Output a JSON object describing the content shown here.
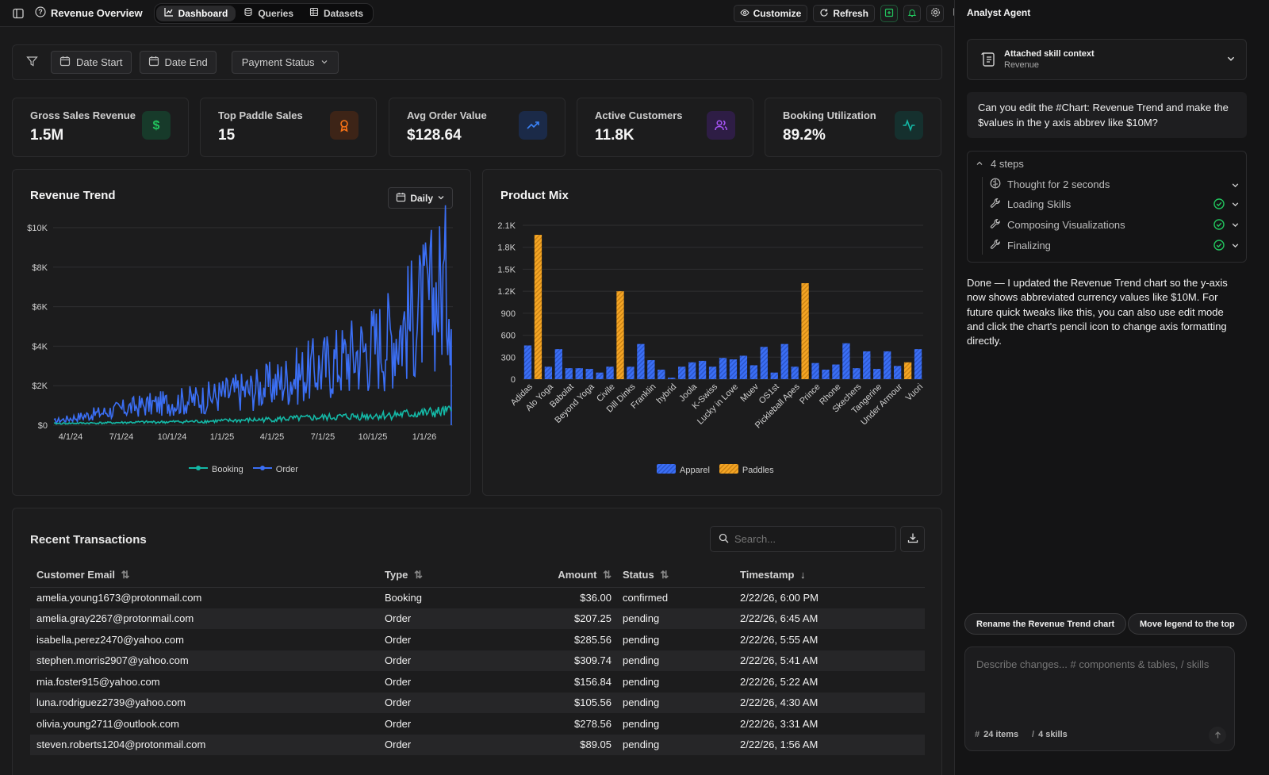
{
  "app": {
    "page_title": "Revenue Overview",
    "tabs": [
      {
        "label": "Dashboard",
        "icon": "line-chart-icon",
        "active": true
      },
      {
        "label": "Queries",
        "icon": "database-icon",
        "active": false
      },
      {
        "label": "Datasets",
        "icon": "table-icon",
        "active": false
      }
    ],
    "customize_label": "Customize",
    "refresh_label": "Refresh"
  },
  "filters": {
    "date_start": "Date Start",
    "date_end": "Date End",
    "payment_status": "Payment Status"
  },
  "kpis": [
    {
      "label": "Gross Sales Revenue",
      "value": "1.5M",
      "icon": "dollar-icon",
      "color": "#22c55e",
      "bg": "#173a2a"
    },
    {
      "label": "Top Paddle Sales",
      "value": "15",
      "icon": "award-icon",
      "color": "#f97316",
      "bg": "#3d2417"
    },
    {
      "label": "Avg Order Value",
      "value": "$128.64",
      "icon": "trending-up-icon",
      "color": "#3b82f6",
      "bg": "#1b2a48"
    },
    {
      "label": "Active Customers",
      "value": "11.8K",
      "icon": "users-icon",
      "color": "#a855f7",
      "bg": "#2e1d45"
    },
    {
      "label": "Booking Utilization",
      "value": "89.2%",
      "icon": "activity-icon",
      "color": "#14b8a6",
      "bg": "#15302e"
    }
  ],
  "revenue_trend": {
    "title": "Revenue Trend",
    "interval": "Daily",
    "legend": [
      "Booking",
      "Order"
    ]
  },
  "product_mix": {
    "title": "Product Mix",
    "legend": [
      "Apparel",
      "Paddles"
    ]
  },
  "chart_data": [
    {
      "type": "line",
      "title": "Revenue Trend",
      "x_ticks": [
        "4/1/24",
        "7/1/24",
        "10/1/24",
        "1/1/25",
        "4/1/25",
        "7/1/25",
        "10/1/25",
        "1/1/26"
      ],
      "y_ticks": [
        "$0",
        "$2K",
        "$4K",
        "$6K",
        "$8K",
        "$10K"
      ],
      "ylim": [
        0,
        10000
      ],
      "series": [
        {
          "name": "Booking",
          "color": "#14b8a6",
          "values": [
            80,
            100,
            110,
            130,
            150,
            160,
            180,
            200,
            230,
            260,
            300,
            340,
            380,
            420,
            460,
            500,
            560,
            620,
            700
          ]
        },
        {
          "name": "Order",
          "color": "#3b6ff5",
          "values": [
            200,
            400,
            600,
            800,
            1000,
            1100,
            1250,
            1400,
            1650,
            1800,
            2100,
            2500,
            2900,
            3300,
            3800,
            4300,
            5200,
            6200,
            7500
          ]
        }
      ],
      "grid": true,
      "legend_position": "bottom"
    },
    {
      "type": "bar",
      "title": "Product Mix",
      "y_ticks": [
        "0",
        "300",
        "600",
        "900",
        "1.2K",
        "1.5K",
        "1.8K",
        "2.1K"
      ],
      "ylim": [
        0,
        2100
      ],
      "labeled_categories": [
        "Adidas",
        "Alo Yoga",
        "Babolat",
        "Beyond Yoga",
        "Civile",
        "Dill Dinks",
        "Franklin",
        "hybrid",
        "Joola",
        "K-Swiss",
        "Lucky in Love",
        "Muev",
        "OS1st",
        "Pickleball Apes",
        "Prince",
        "Rhone",
        "Skechers",
        "Tangerine",
        "Under Armour",
        "Vuori"
      ],
      "series": [
        {
          "name": "Apparel",
          "color": "#3b6ff5",
          "values": [
            460,
            0,
            170,
            410,
            150,
            150,
            140,
            90,
            170,
            0,
            170,
            480,
            260,
            130,
            20,
            170,
            230,
            250,
            170,
            290,
            270,
            320,
            190,
            440,
            90,
            480,
            170,
            0,
            220,
            130,
            200,
            490,
            150,
            380,
            140,
            380,
            180,
            0,
            410
          ]
        },
        {
          "name": "Paddles",
          "color": "#f5a524",
          "values": [
            0,
            1970,
            0,
            0,
            0,
            0,
            0,
            0,
            0,
            1200,
            0,
            0,
            0,
            0,
            0,
            0,
            0,
            0,
            0,
            0,
            0,
            0,
            0,
            0,
            0,
            0,
            0,
            1310,
            0,
            0,
            0,
            0,
            0,
            0,
            0,
            0,
            0,
            230,
            0
          ]
        }
      ],
      "grid": true,
      "legend_position": "bottom"
    }
  ],
  "transactions": {
    "title": "Recent Transactions",
    "search_placeholder": "Search...",
    "columns": [
      "Customer Email",
      "Type",
      "Amount",
      "Status",
      "Timestamp"
    ],
    "rows": [
      [
        "amelia.young1673@protonmail.com",
        "Booking",
        "$36.00",
        "confirmed",
        "2/22/26, 6:00 PM"
      ],
      [
        "amelia.gray2267@protonmail.com",
        "Order",
        "$207.25",
        "pending",
        "2/22/26, 6:45 AM"
      ],
      [
        "isabella.perez2470@yahoo.com",
        "Order",
        "$285.56",
        "pending",
        "2/22/26, 5:55 AM"
      ],
      [
        "stephen.morris2907@yahoo.com",
        "Order",
        "$309.74",
        "pending",
        "2/22/26, 5:41 AM"
      ],
      [
        "mia.foster915@yahoo.com",
        "Order",
        "$156.84",
        "pending",
        "2/22/26, 5:22 AM"
      ],
      [
        "luna.rodriguez2739@yahoo.com",
        "Order",
        "$105.56",
        "pending",
        "2/22/26, 4:30 AM"
      ],
      [
        "olivia.young2711@outlook.com",
        "Order",
        "$278.56",
        "pending",
        "2/22/26, 3:31 AM"
      ],
      [
        "steven.roberts1204@protonmail.com",
        "Order",
        "$89.05",
        "pending",
        "2/22/26, 1:56 AM"
      ]
    ]
  },
  "agent": {
    "title": "Analyst Agent",
    "context_title": "Attached skill context",
    "context_sub": "Revenue",
    "user_message": "Can you edit the #Chart: Revenue Trend and make the $values in the y axis abbrev like $10M?",
    "steps_label": "4 steps",
    "steps": [
      {
        "label": "Thought for 2 seconds",
        "icon": "brain-icon",
        "done": false
      },
      {
        "label": "Loading Skills",
        "icon": "wrench-icon",
        "done": true
      },
      {
        "label": "Composing Visualizations",
        "icon": "wrench-icon",
        "done": true
      },
      {
        "label": "Finalizing",
        "icon": "wrench-icon",
        "done": true
      }
    ],
    "response": "Done — I updated the Revenue Trend chart so the y-axis now shows abbreviated currency values like $10M. For future quick tweaks like this, you can also use edit mode and click the chart's pencil icon to change axis formatting directly.",
    "suggestions": [
      "Rename the Revenue Trend chart",
      "Move legend to the top"
    ],
    "composer_placeholder": "Describe changes... # components & tables, / skills",
    "items_label": "24 items",
    "skills_label": "4 skills"
  }
}
